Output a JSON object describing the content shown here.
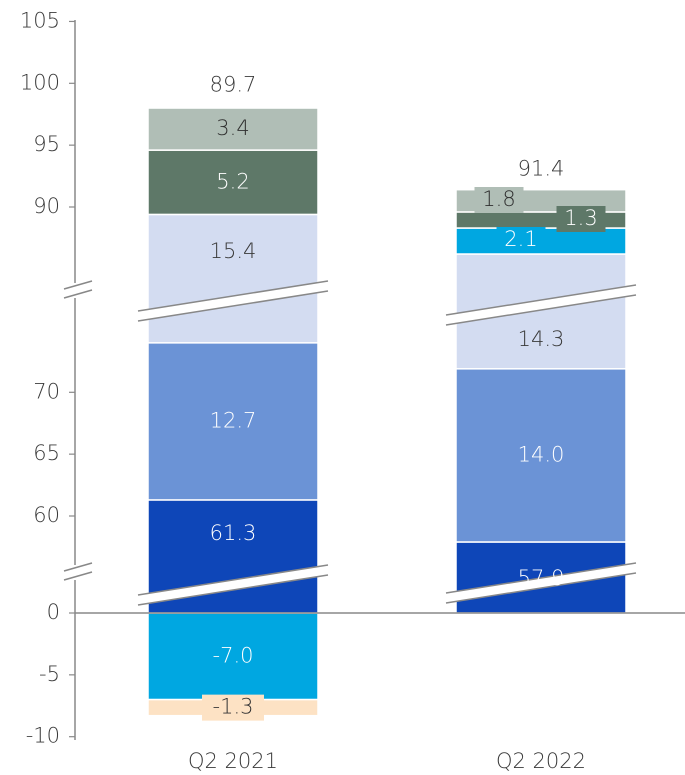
{
  "chart_data": {
    "type": "bar",
    "stacked": true,
    "broken_axis": true,
    "categories": [
      "Q2 2021",
      "Q2 2022"
    ],
    "totals": [
      "89.7",
      "91.4"
    ],
    "y_ticks": [
      "105",
      "100",
      "95",
      "90",
      "70",
      "65",
      "60",
      "0",
      "-5",
      "-10"
    ],
    "segments": [
      {
        "category": "Q2 2021",
        "items": [
          {
            "value": -7.0,
            "label": "-7.0",
            "color": "#00a7e1",
            "text_color": "#ffffff"
          },
          {
            "value": -1.3,
            "label": "-1.3",
            "color": "#fde2c4",
            "text_color": "#333333",
            "boxed": true
          },
          {
            "value": 61.3,
            "label": "61.3",
            "color": "#0e46b8",
            "text_color": "#ffffff"
          },
          {
            "value": 12.7,
            "label": "12.7",
            "color": "#6b93d6",
            "text_color": "#ffffff"
          },
          {
            "value": 15.4,
            "label": "15.4",
            "color": "#d3dcf1",
            "text_color": "#3a3a3a"
          },
          {
            "value": 5.2,
            "label": "5.2",
            "color": "#5e7868",
            "text_color": "#ffffff"
          },
          {
            "value": 3.4,
            "label": "3.4",
            "color": "#b0beb6",
            "text_color": "#2f2f2f"
          }
        ]
      },
      {
        "category": "Q2 2022",
        "items": [
          {
            "value": 57.9,
            "label": "57.9",
            "color": "#0e46b8",
            "text_color": "#ffffff"
          },
          {
            "value": 14.0,
            "label": "14.0",
            "color": "#6b93d6",
            "text_color": "#ffffff"
          },
          {
            "value": 14.3,
            "label": "14.3",
            "color": "#d3dcf1",
            "text_color": "#3a3a3a"
          },
          {
            "value": 2.1,
            "label": "2.1",
            "color": "#00a7e1",
            "text_color": "#ffffff",
            "boxed": true
          },
          {
            "value": 1.3,
            "label": "1.3",
            "color": "#5e7868",
            "text_color": "#ffffff",
            "boxed": true
          },
          {
            "value": 1.8,
            "label": "1.8",
            "color": "#b0beb6",
            "text_color": "#2f2f2f",
            "boxed": true
          }
        ]
      }
    ]
  }
}
